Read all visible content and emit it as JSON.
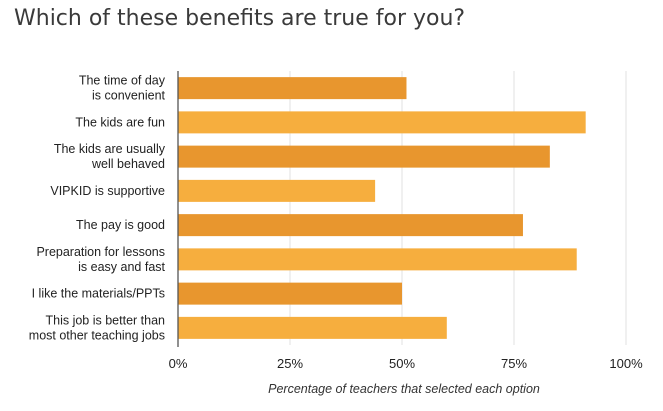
{
  "title": "Which of these benefits are true for you?",
  "colors": {
    "bar_dark": "#E8962E",
    "bar_light": "#F6AE3E",
    "grid": "#E2E2E2",
    "axis": "#555555"
  },
  "chart_data": {
    "type": "bar",
    "orientation": "horizontal",
    "title": "Which of these benefits are true for you?",
    "categories": [
      [
        "The time of day",
        "is convenient"
      ],
      [
        "The kids are fun"
      ],
      [
        "The kids are usually",
        "well behaved"
      ],
      [
        "VIPKID is supportive"
      ],
      [
        "The pay is good"
      ],
      [
        "Preparation for lessons",
        "is easy and fast"
      ],
      [
        "I like the materials/PPTs"
      ],
      [
        "This job is better than",
        "most other teaching jobs"
      ]
    ],
    "values": [
      51,
      91,
      83,
      44,
      77,
      89,
      50,
      60
    ],
    "xlim": [
      0,
      100
    ],
    "x_ticks": [
      0,
      25,
      50,
      75,
      100
    ],
    "x_tick_labels": [
      "0%",
      "25%",
      "50%",
      "75%",
      "100%"
    ],
    "xlabel": "Percentage of teachers that selected each option",
    "ylabel": "",
    "grid": true,
    "legend": "none"
  }
}
